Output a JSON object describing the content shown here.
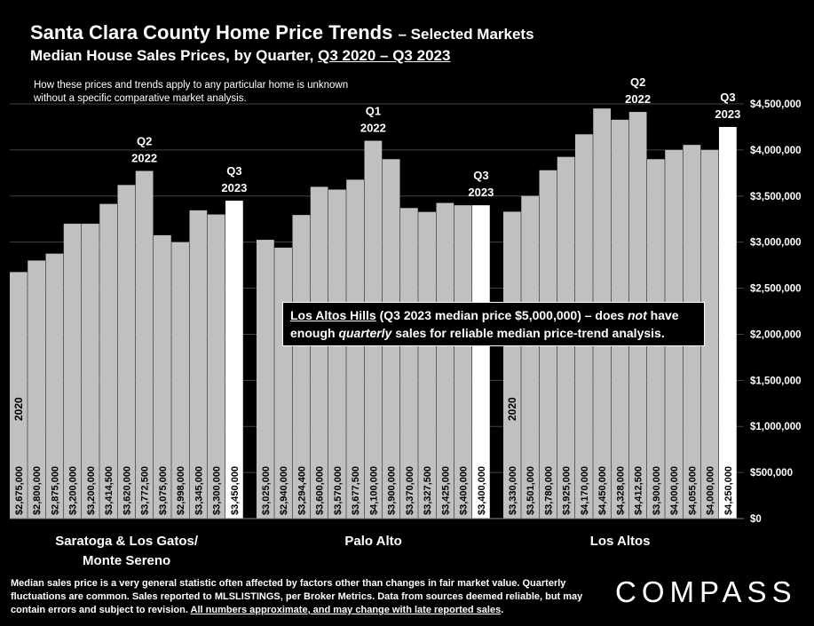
{
  "title_main": "Santa Clara County Home Price Trends",
  "title_suffix": "– Selected Markets",
  "subtitle_prefix": "Median House Sales Prices, by Quarter, ",
  "subtitle_range": "Q3 2020 – Q3 2023",
  "note": "How these prices and trends apply to any particular home is unknown without a specific comparative market analysis.",
  "callout": {
    "link_text": "Los Altos Hills",
    "part1": " (Q3 2023 median price $5,000,000) – does ",
    "emph1": "not",
    "part2": " have enough ",
    "emph2": "quarterly",
    "part3": " sales for reliable median price-trend analysis."
  },
  "footer": {
    "text": "Median sales price is a very general statistic often affected by factors other than changes in fair market value. Quarterly fluctuations are common. Sales reported to MLSLISTINGS, per Broker Metrics. Data from sources deemed reliable, but may contain errors and subject to revision. ",
    "underlined": "All numbers approximate, and may change with late reported sales",
    "end": "."
  },
  "logo": "COMPASS",
  "colors": {
    "bar": "#c0c0c0",
    "bar_latest": "#ffffff",
    "background": "#000000",
    "grid": "#444444",
    "text": "#ffffff"
  },
  "chart_data": {
    "type": "bar",
    "y_axis": {
      "min": 0,
      "max": 4500000,
      "step": 500000,
      "position": "right",
      "ticks": [
        "$0",
        "$500,000",
        "$1,000,000",
        "$1,500,000",
        "$2,000,000",
        "$2,500,000",
        "$3,000,000",
        "$3,500,000",
        "$4,000,000",
        "$4,500,000"
      ]
    },
    "grid": true,
    "groups": [
      {
        "name": "Saratoga & Los Gatos/ Monte Sereno",
        "name_lines": [
          "Saratoga & Los Gatos/",
          "Monte Sereno"
        ],
        "values": [
          2675000,
          2800000,
          2875000,
          3200000,
          3200000,
          3414500,
          3620000,
          3772500,
          3075000,
          2998000,
          3345000,
          3300000,
          3450000
        ],
        "labels": [
          "$2,675,000",
          "$2,800,000",
          "$2,875,000",
          "$3,200,000",
          "$3,200,000",
          "$3,414,500",
          "$3,620,000",
          "$3,772,500",
          "$3,075,000",
          "$2,998,000",
          "$3,345,000",
          "$3,300,000",
          "$3,450,000"
        ],
        "annotations": [
          {
            "index": 0,
            "lines": [
              "2020"
            ],
            "type": "inbar"
          },
          {
            "index": 7,
            "lines": [
              "Q2",
              "2022"
            ],
            "type": "above"
          },
          {
            "index": 12,
            "lines": [
              "Q3",
              "2023"
            ],
            "type": "above"
          }
        ]
      },
      {
        "name": "Palo Alto",
        "name_lines": [
          "Palo Alto"
        ],
        "values": [
          3025000,
          2940000,
          3294400,
          3600000,
          3570000,
          3677500,
          4100000,
          3900000,
          3370000,
          3327500,
          3425000,
          3400000,
          3400000
        ],
        "labels": [
          "$3,025,000",
          "$2,940,000",
          "$3,294,400",
          "$3,600,000",
          "$3,570,000",
          "$3,677,500",
          "$4,100,000",
          "$3,900,000",
          "$3,370,000",
          "$3,327,500",
          "$3,425,000",
          "$3,400,000",
          "$3,400,000"
        ],
        "annotations": [
          {
            "index": 6,
            "lines": [
              "Q1",
              "2022"
            ],
            "type": "above"
          },
          {
            "index": 12,
            "lines": [
              "Q3",
              "2023"
            ],
            "type": "above"
          }
        ]
      },
      {
        "name": "Los Altos",
        "name_lines": [
          "Los Altos"
        ],
        "values": [
          3330000,
          3501000,
          3780000,
          3925000,
          4170000,
          4450000,
          4328000,
          4412500,
          3900000,
          4000000,
          4055000,
          4000000,
          4250000
        ],
        "labels": [
          "$3,330,000",
          "$3,501,000",
          "$3,780,000",
          "$3,925,000",
          "$4,170,000",
          "$4,450,000",
          "$4,328,000",
          "$4,412,500",
          "$3,900,000",
          "$4,000,000",
          "$4,055,000",
          "$4,000,000",
          "$4,250,000"
        ],
        "annotations": [
          {
            "index": 0,
            "lines": [
              "2020"
            ],
            "type": "inbar"
          },
          {
            "index": 7,
            "lines": [
              "Q2",
              "2022"
            ],
            "type": "above"
          },
          {
            "index": 12,
            "lines": [
              "Q3",
              "2023"
            ],
            "type": "above"
          }
        ]
      }
    ]
  }
}
